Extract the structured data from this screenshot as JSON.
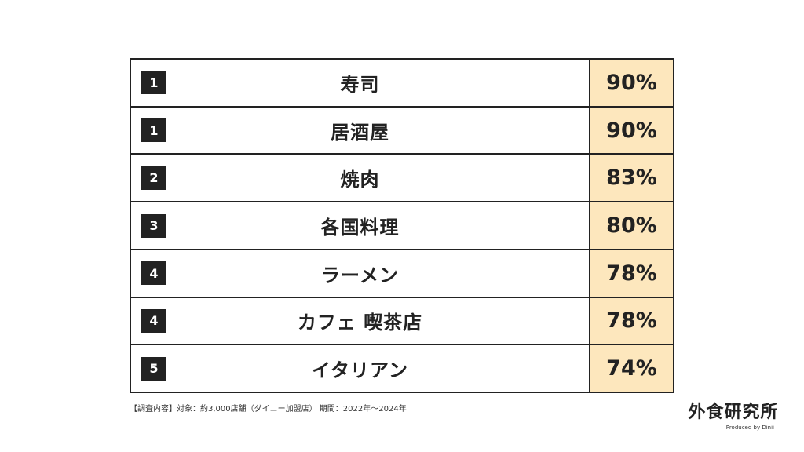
{
  "chart_data": {
    "type": "table",
    "columns": [
      "rank",
      "category",
      "value"
    ],
    "rows": [
      {
        "rank": "1",
        "category": "寿司",
        "value": 90,
        "label": "90%"
      },
      {
        "rank": "1",
        "category": "居酒屋",
        "value": 90,
        "label": "90%"
      },
      {
        "rank": "2",
        "category": "焼肉",
        "value": 83,
        "label": "83%"
      },
      {
        "rank": "3",
        "category": "各国料理",
        "value": 80,
        "label": "80%"
      },
      {
        "rank": "4",
        "category": "ラーメン",
        "value": 78,
        "label": "78%"
      },
      {
        "rank": "4",
        "category": "カフェ 喫茶店",
        "value": 78,
        "label": "78%"
      },
      {
        "rank": "5",
        "category": "イタリアン",
        "value": 74,
        "label": "74%"
      }
    ]
  },
  "colors": {
    "value_cell_bg": "#fde7bd",
    "rank_badge_bg": "#222222",
    "border": "#222222"
  },
  "footnote": "【調査内容】対象：約3,000店舗（ダイニー加盟店） 期間：2022年〜2024年",
  "logo": {
    "main": "外食研究所",
    "sub": "Produced by Dinii"
  }
}
